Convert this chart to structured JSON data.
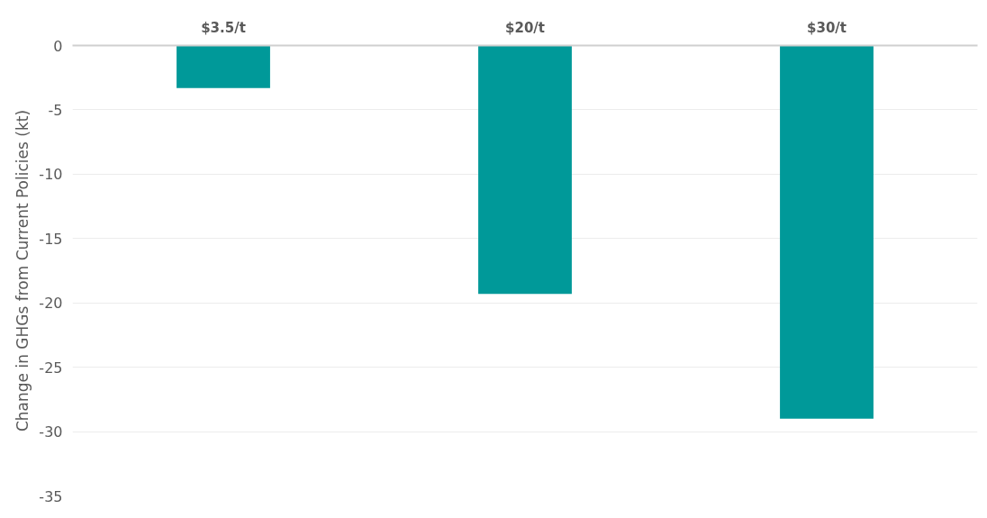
{
  "chart_data": {
    "type": "bar",
    "ylabel": "Change in GHGs from Current Policies (kt)",
    "categories": [
      "$3.5/t",
      "$20/t",
      "$30/t"
    ],
    "values": [
      -3.3,
      -19.3,
      -29.0
    ],
    "color": "#009999",
    "ylim": [
      -35,
      0
    ],
    "yticks": [
      0,
      -5,
      -10,
      -15,
      -20,
      -25,
      -30,
      -35
    ],
    "grid": "y"
  }
}
